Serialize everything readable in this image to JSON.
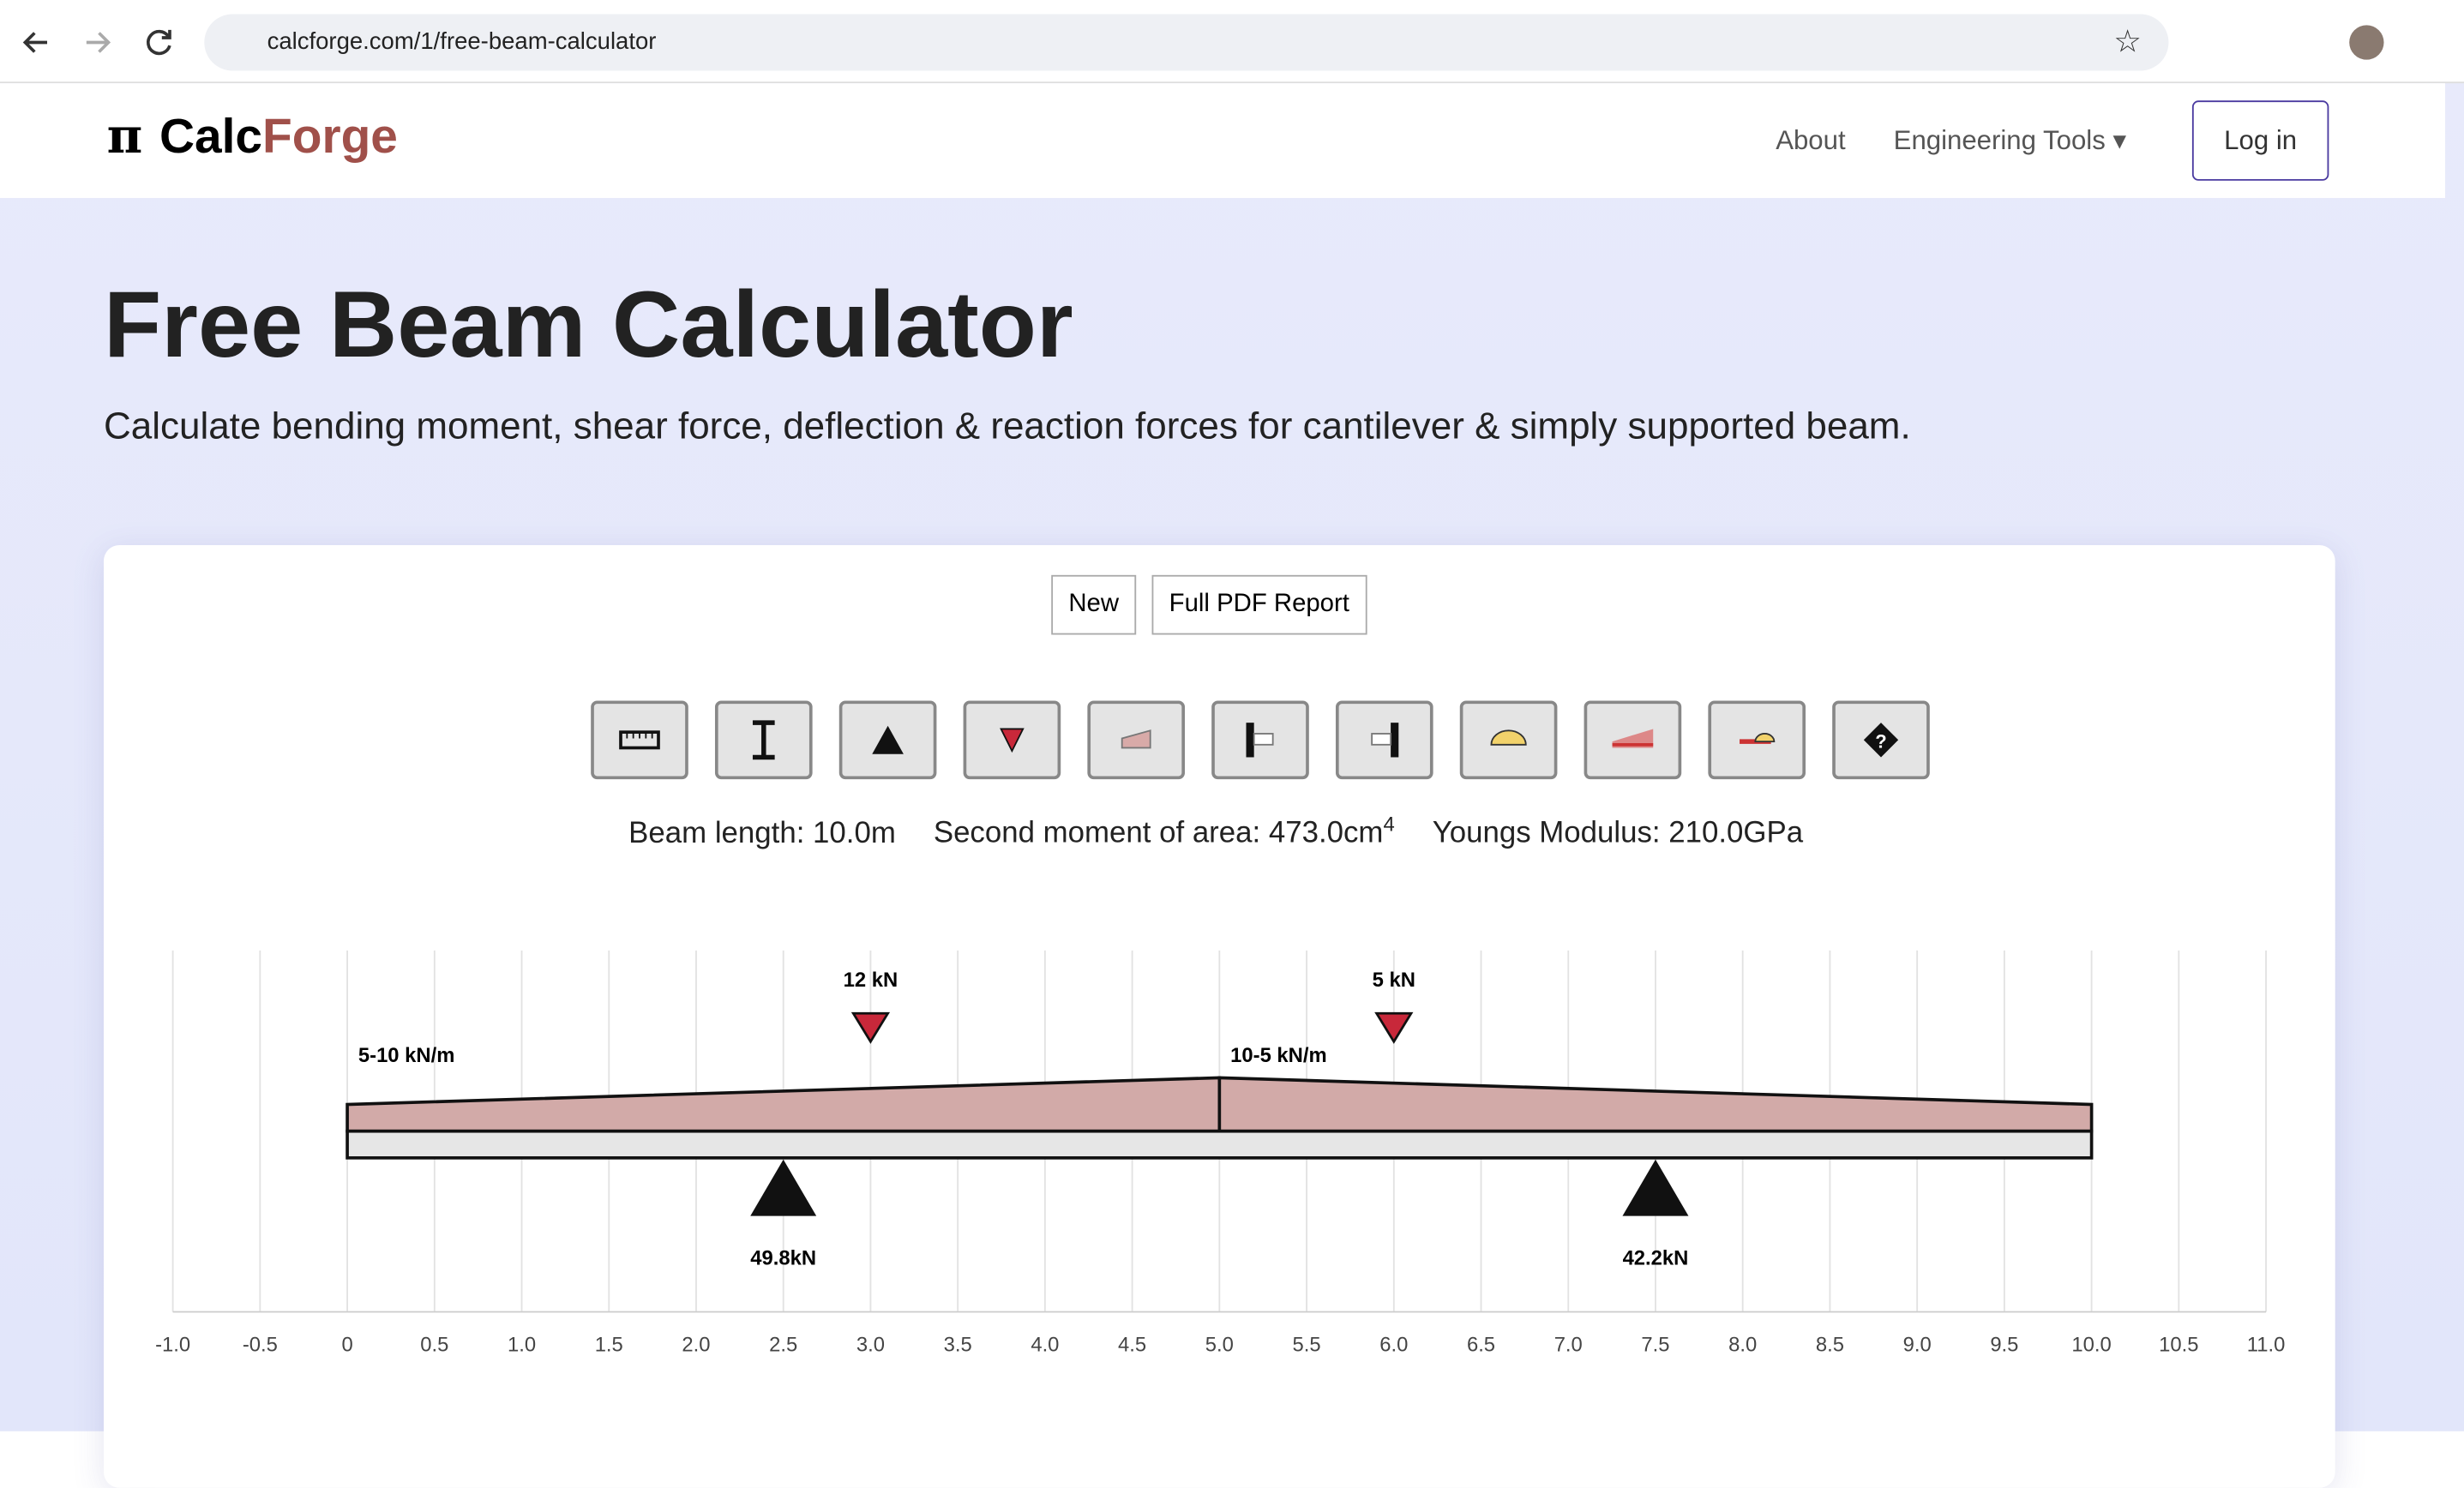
{
  "browser": {
    "url": "calcforge.com/1/free-beam-calculator"
  },
  "header": {
    "brand_a": "Calc",
    "brand_b": "Forge",
    "nav": [
      "About",
      "Engineering Tools"
    ],
    "login": "Log in"
  },
  "hero": {
    "title": "Free Beam Calculator",
    "subtitle": "Calculate bending moment, shear force, deflection & reaction forces for cantilever & simply supported beam."
  },
  "actions": [
    "New",
    "Full PDF Report"
  ],
  "info": {
    "length": "Beam length: 10.0m",
    "inertia": "Second moment of area: 473.0cm",
    "inertia_power": "4",
    "modulus": "Youngs Modulus: 210.0GPa"
  },
  "beam": {
    "xlim": [
      -1,
      11
    ],
    "xticks": [
      {
        "value": -1,
        "label": "-1.0"
      },
      {
        "value": -0.5,
        "label": "-0.5"
      },
      0,
      0.5,
      {
        "value": 1,
        "label": "1.0"
      },
      1.5,
      {
        "value": 2,
        "label": "2.0"
      },
      2.5,
      {
        "value": 3,
        "label": "3.0"
      },
      3.5,
      {
        "value": 4,
        "label": "4.0"
      },
      4.5,
      {
        "value": 5,
        "label": "5.0"
      },
      5.5,
      {
        "value": 6,
        "label": "6.0"
      },
      6.5,
      {
        "value": 7,
        "label": "7.0"
      },
      7.5,
      {
        "value": 8,
        "label": "8.0"
      },
      8.5,
      {
        "value": 9,
        "label": "9.0"
      },
      9.5,
      {
        "value": 10,
        "label": "10.0"
      },
      10.5,
      {
        "value": 11,
        "label": "11.0"
      }
    ],
    "span": [
      0,
      10
    ],
    "distributed_loads": [
      {
        "start": 0,
        "end": 5,
        "w_start": 5,
        "w_end": 10,
        "label": "5-10 kN/m"
      },
      {
        "start": 5,
        "end": 10,
        "w_start": 10,
        "w_end": 5,
        "label": "10-5 kN/m"
      }
    ],
    "point_loads": [
      {
        "x": 3,
        "label": "12 kN"
      },
      {
        "x": 6,
        "label": "5 kN"
      }
    ],
    "supports": [
      {
        "x": 2.5,
        "label": "49.8kN"
      },
      {
        "x": 7.5,
        "label": "42.2kN"
      }
    ]
  }
}
